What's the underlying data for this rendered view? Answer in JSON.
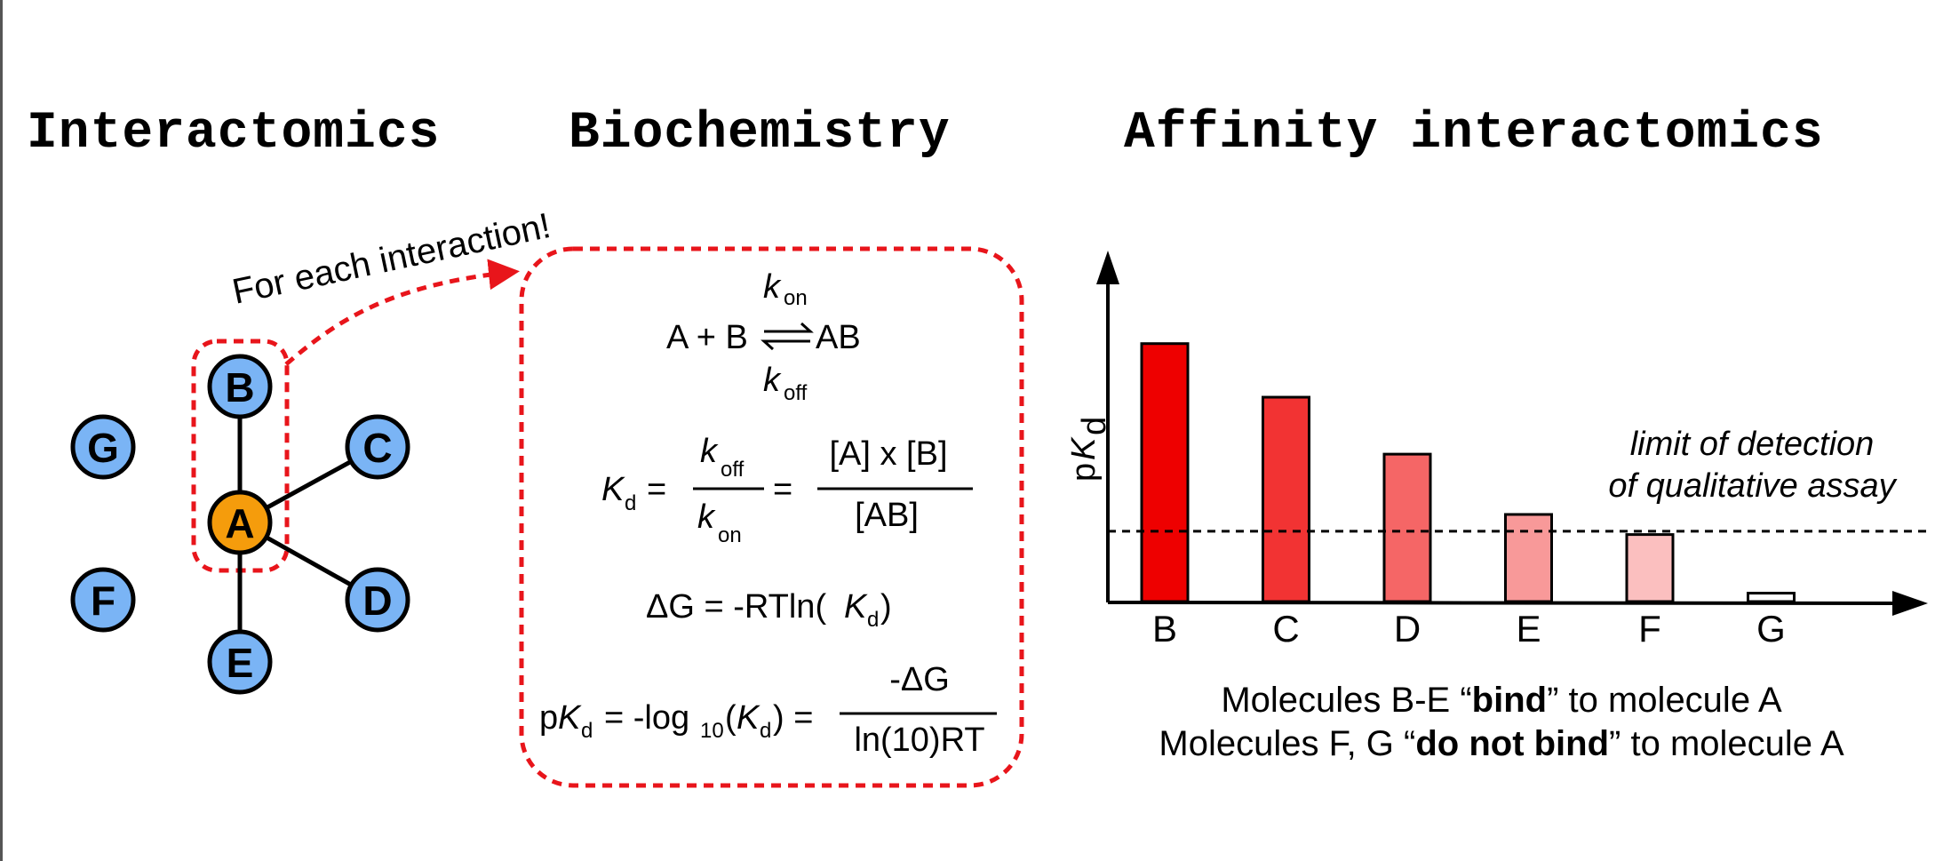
{
  "headings": {
    "interactomics": "Interactomics",
    "biochemistry": "Biochemistry",
    "affinity": "Affinity interactomics"
  },
  "network": {
    "callout": "For each interaction!",
    "center": "A",
    "nodes": [
      "B",
      "C",
      "D",
      "E",
      "F",
      "G"
    ],
    "colors": {
      "center": "#f59c0c",
      "node": "#7ab4f5"
    }
  },
  "equations": {
    "k": "k",
    "on": "on",
    "off": "off",
    "reaction_left": "A + B",
    "reaction_right": "AB",
    "K": "K",
    "d": "d",
    "equals": "=",
    "conc_numerator": "[A] x [B]",
    "conc_denominator": "[AB]",
    "dg_prefix": "ΔG = -RTln(",
    "close_paren": ")",
    "p": "p",
    "log_prefix": "= -log",
    "log_base": "10",
    "open_paren": "(",
    "close_paren_eq": ") =",
    "dg_numerator": "-ΔG",
    "dg_denominator": "ln(10)RT"
  },
  "chart_data": {
    "type": "bar",
    "categories": [
      "B",
      "C",
      "D",
      "E",
      "F",
      "G"
    ],
    "values": [
      7.7,
      6.1,
      4.4,
      2.6,
      2.0,
      0.25
    ],
    "ylabel_p": "p",
    "ylabel_K": "K",
    "ylabel_sub": "d",
    "threshold": 2.1,
    "threshold_label_1": "limit of detection",
    "threshold_label_2": "of qualitative assay",
    "colors": [
      "#ee0000",
      "#f23333",
      "#f56666",
      "#f89999",
      "#fbbfbf",
      "#ffffff"
    ],
    "ylim": [
      0,
      10
    ]
  },
  "captions": {
    "line1_a": "Molecules B-E “",
    "line1_b": "bind",
    "line1_c": "” to molecule A",
    "line2_a": "Molecules F, G “",
    "line2_b": "do not bind",
    "line2_c": "” to molecule A"
  }
}
